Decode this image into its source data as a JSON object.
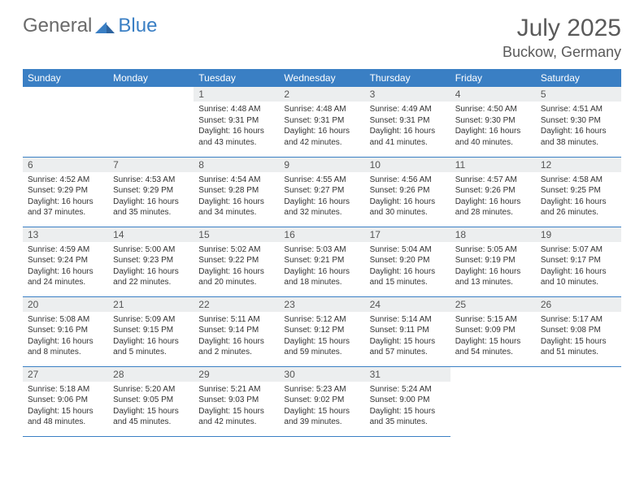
{
  "logo": {
    "text1": "General",
    "text2": "Blue"
  },
  "title": "July 2025",
  "location": "Buckow, Germany",
  "colors": {
    "header_bg": "#3a7fc4",
    "header_fg": "#ffffff",
    "daynum_bg": "#eceeef",
    "border": "#3a7fc4",
    "text": "#333333",
    "title_color": "#5a5a5a"
  },
  "weekdays": [
    "Sunday",
    "Monday",
    "Tuesday",
    "Wednesday",
    "Thursday",
    "Friday",
    "Saturday"
  ],
  "weeks": [
    [
      null,
      null,
      {
        "n": "1",
        "sr": "4:48 AM",
        "ss": "9:31 PM",
        "dl": "16 hours and 43 minutes."
      },
      {
        "n": "2",
        "sr": "4:48 AM",
        "ss": "9:31 PM",
        "dl": "16 hours and 42 minutes."
      },
      {
        "n": "3",
        "sr": "4:49 AM",
        "ss": "9:31 PM",
        "dl": "16 hours and 41 minutes."
      },
      {
        "n": "4",
        "sr": "4:50 AM",
        "ss": "9:30 PM",
        "dl": "16 hours and 40 minutes."
      },
      {
        "n": "5",
        "sr": "4:51 AM",
        "ss": "9:30 PM",
        "dl": "16 hours and 38 minutes."
      }
    ],
    [
      {
        "n": "6",
        "sr": "4:52 AM",
        "ss": "9:29 PM",
        "dl": "16 hours and 37 minutes."
      },
      {
        "n": "7",
        "sr": "4:53 AM",
        "ss": "9:29 PM",
        "dl": "16 hours and 35 minutes."
      },
      {
        "n": "8",
        "sr": "4:54 AM",
        "ss": "9:28 PM",
        "dl": "16 hours and 34 minutes."
      },
      {
        "n": "9",
        "sr": "4:55 AM",
        "ss": "9:27 PM",
        "dl": "16 hours and 32 minutes."
      },
      {
        "n": "10",
        "sr": "4:56 AM",
        "ss": "9:26 PM",
        "dl": "16 hours and 30 minutes."
      },
      {
        "n": "11",
        "sr": "4:57 AM",
        "ss": "9:26 PM",
        "dl": "16 hours and 28 minutes."
      },
      {
        "n": "12",
        "sr": "4:58 AM",
        "ss": "9:25 PM",
        "dl": "16 hours and 26 minutes."
      }
    ],
    [
      {
        "n": "13",
        "sr": "4:59 AM",
        "ss": "9:24 PM",
        "dl": "16 hours and 24 minutes."
      },
      {
        "n": "14",
        "sr": "5:00 AM",
        "ss": "9:23 PM",
        "dl": "16 hours and 22 minutes."
      },
      {
        "n": "15",
        "sr": "5:02 AM",
        "ss": "9:22 PM",
        "dl": "16 hours and 20 minutes."
      },
      {
        "n": "16",
        "sr": "5:03 AM",
        "ss": "9:21 PM",
        "dl": "16 hours and 18 minutes."
      },
      {
        "n": "17",
        "sr": "5:04 AM",
        "ss": "9:20 PM",
        "dl": "16 hours and 15 minutes."
      },
      {
        "n": "18",
        "sr": "5:05 AM",
        "ss": "9:19 PM",
        "dl": "16 hours and 13 minutes."
      },
      {
        "n": "19",
        "sr": "5:07 AM",
        "ss": "9:17 PM",
        "dl": "16 hours and 10 minutes."
      }
    ],
    [
      {
        "n": "20",
        "sr": "5:08 AM",
        "ss": "9:16 PM",
        "dl": "16 hours and 8 minutes."
      },
      {
        "n": "21",
        "sr": "5:09 AM",
        "ss": "9:15 PM",
        "dl": "16 hours and 5 minutes."
      },
      {
        "n": "22",
        "sr": "5:11 AM",
        "ss": "9:14 PM",
        "dl": "16 hours and 2 minutes."
      },
      {
        "n": "23",
        "sr": "5:12 AM",
        "ss": "9:12 PM",
        "dl": "15 hours and 59 minutes."
      },
      {
        "n": "24",
        "sr": "5:14 AM",
        "ss": "9:11 PM",
        "dl": "15 hours and 57 minutes."
      },
      {
        "n": "25",
        "sr": "5:15 AM",
        "ss": "9:09 PM",
        "dl": "15 hours and 54 minutes."
      },
      {
        "n": "26",
        "sr": "5:17 AM",
        "ss": "9:08 PM",
        "dl": "15 hours and 51 minutes."
      }
    ],
    [
      {
        "n": "27",
        "sr": "5:18 AM",
        "ss": "9:06 PM",
        "dl": "15 hours and 48 minutes."
      },
      {
        "n": "28",
        "sr": "5:20 AM",
        "ss": "9:05 PM",
        "dl": "15 hours and 45 minutes."
      },
      {
        "n": "29",
        "sr": "5:21 AM",
        "ss": "9:03 PM",
        "dl": "15 hours and 42 minutes."
      },
      {
        "n": "30",
        "sr": "5:23 AM",
        "ss": "9:02 PM",
        "dl": "15 hours and 39 minutes."
      },
      {
        "n": "31",
        "sr": "5:24 AM",
        "ss": "9:00 PM",
        "dl": "15 hours and 35 minutes."
      },
      null,
      null
    ]
  ],
  "labels": {
    "sunrise": "Sunrise:",
    "sunset": "Sunset:",
    "daylight": "Daylight:"
  }
}
